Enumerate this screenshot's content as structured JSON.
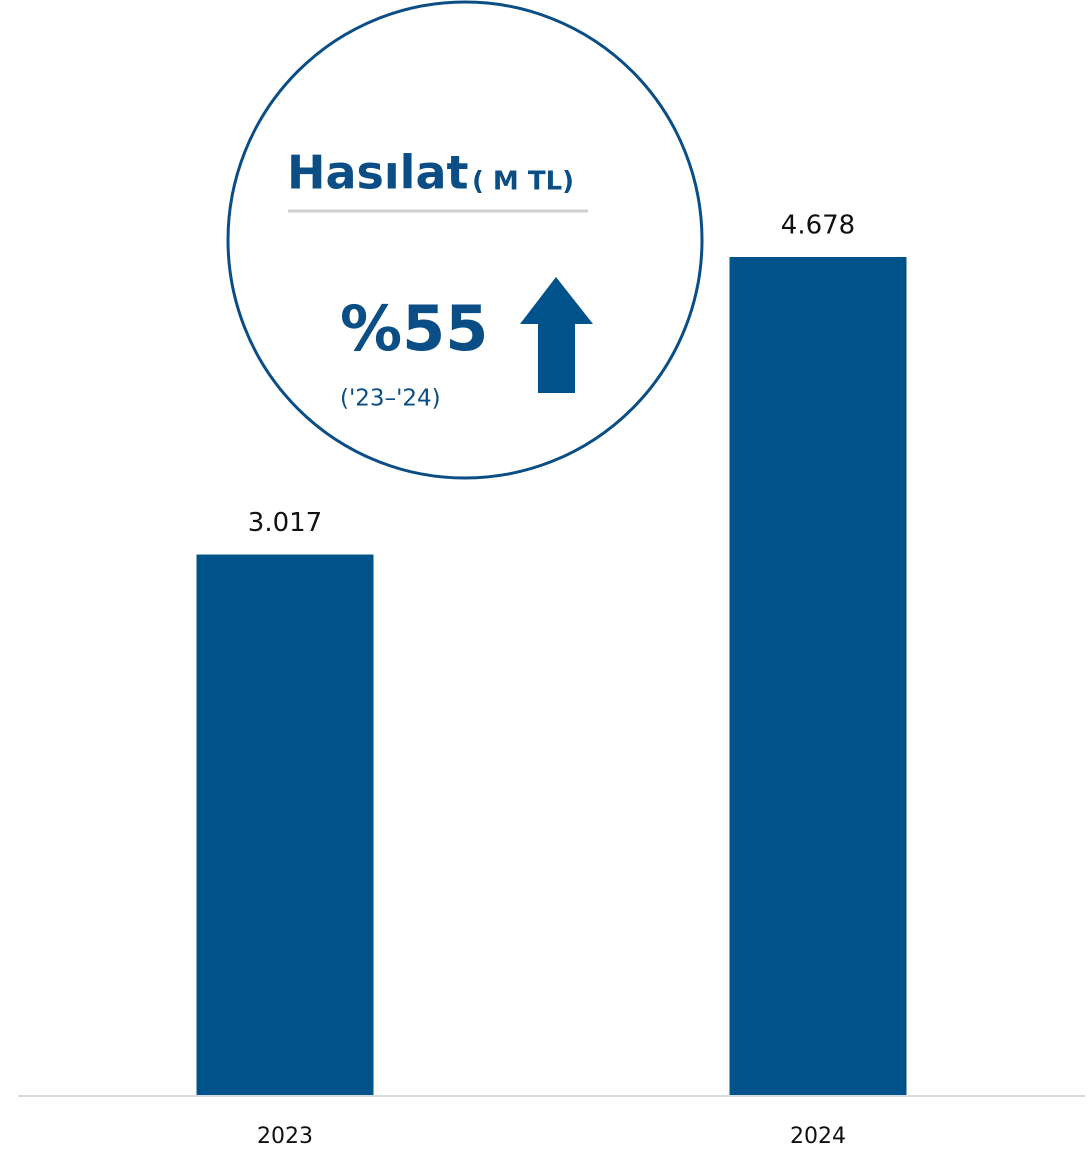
{
  "chart_data": {
    "type": "bar",
    "title": "Hasılat",
    "subtitle": "( M TL)",
    "annotations": [
      "%55",
      "('23–'24)"
    ],
    "categories": [
      "2023",
      "2024"
    ],
    "values": [
      3017,
      4678
    ],
    "value_labels": [
      "3.017",
      "4.678"
    ],
    "color": "#00538a"
  }
}
